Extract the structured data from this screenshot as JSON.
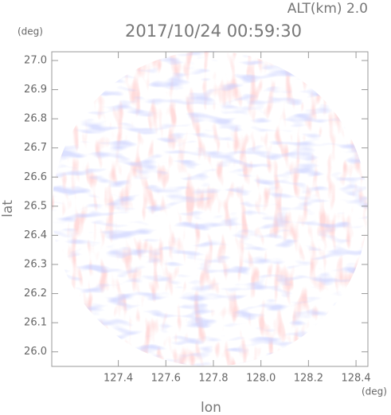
{
  "chart_data": {
    "type": "radar",
    "title": "2017/10/24 00:59:30",
    "subtitle": "ALT(km) 2.0",
    "x_label": "lon",
    "y_label": "lat",
    "x_unit": "(deg)",
    "y_unit": "(deg)",
    "xlim": [
      127.12,
      128.45
    ],
    "ylim": [
      25.95,
      27.03
    ],
    "xticks": [
      127.4,
      127.6,
      127.8,
      {
        "value": 128.0,
        "label": "128.0"
      },
      128.2,
      128.4
    ],
    "yticks": [
      {
        "value": 26.0,
        "label": "26.0"
      },
      26.1,
      26.2,
      26.3,
      26.4,
      26.5,
      26.6,
      26.7,
      26.8,
      26.9,
      {
        "value": 27.0,
        "label": "27.0"
      }
    ]
  }
}
